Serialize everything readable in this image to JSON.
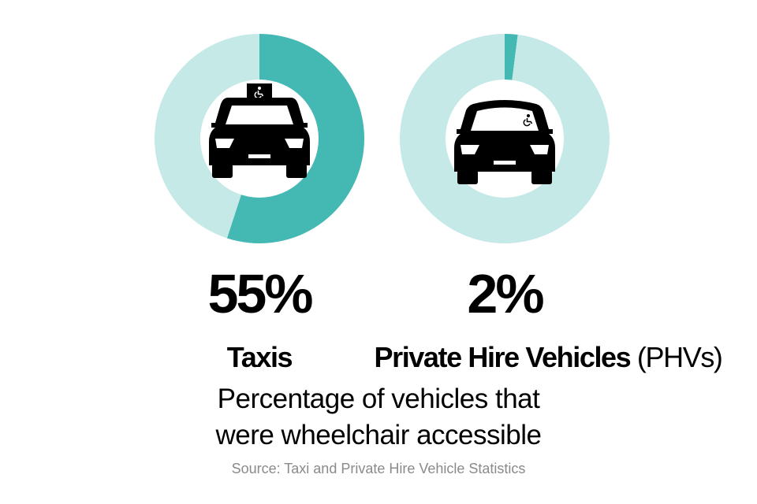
{
  "chart_data": [
    {
      "type": "pie",
      "style": "donut",
      "categories": [
        "Wheelchair accessible",
        "Not wheelchair accessible"
      ],
      "values": [
        55,
        45
      ],
      "value_label": "55%",
      "title": "Taxis",
      "colors": [
        "#44b8b3",
        "#c5e9e7"
      ],
      "icon": "taxi-wheelchair-icon"
    },
    {
      "type": "pie",
      "style": "donut",
      "categories": [
        "Wheelchair accessible",
        "Not wheelchair accessible"
      ],
      "values": [
        2,
        98
      ],
      "value_label": "2%",
      "title": "Private Hire Vehicles",
      "title_suffix": "(PHVs)",
      "colors": [
        "#44b8b3",
        "#c5e9e7"
      ],
      "icon": "car-wheelchair-icon"
    }
  ],
  "caption_lines": [
    "Percentage of vehicles that",
    "were wheelchair accessible"
  ],
  "source": "Source: Taxi and Private Hire Vehicle Statistics"
}
